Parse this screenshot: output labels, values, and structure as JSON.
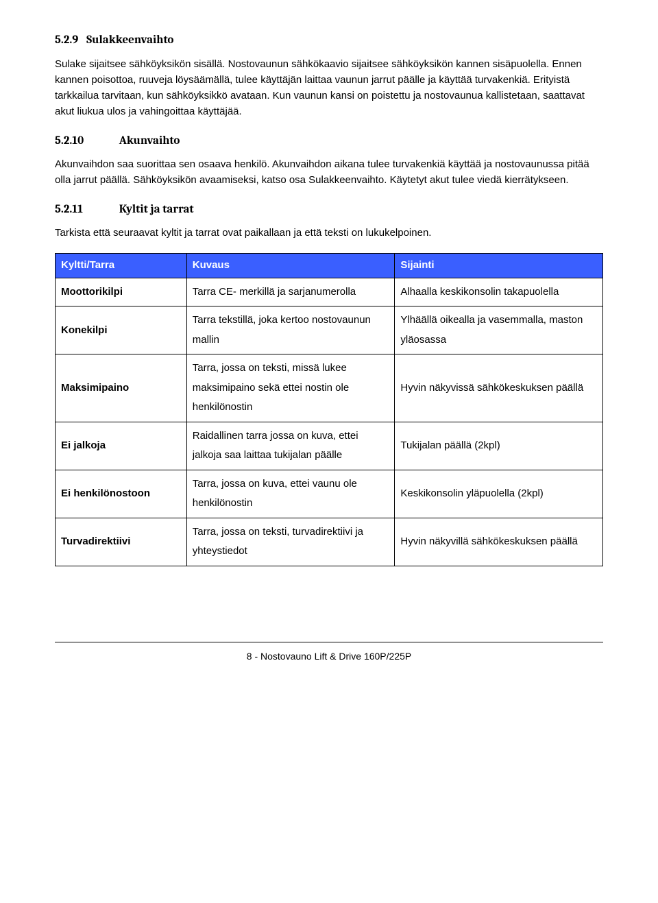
{
  "sections": {
    "s529": {
      "num": "5.2.9",
      "title": "Sulakkeenvaihto",
      "body": "Sulake sijaitsee sähköyksikön sisällä. Nostovaunun sähkökaavio sijaitsee sähköyksikön kannen sisäpuolella. Ennen kannen poisottoa, ruuveja löysäämällä, tulee käyttäjän laittaa vaunun jarrut päälle ja käyttää turvakenkiä. Erityistä tarkkailua tarvitaan, kun sähköyksikkö avataan. Kun vaunun kansi on poistettu ja nostovaunua kallistetaan, saattavat akut liukua ulos ja vahingoittaa käyttäjää."
    },
    "s5210": {
      "num": "5.2.10",
      "title": "Akunvaihto",
      "body": "Akunvaihdon saa suorittaa sen osaava henkilö. Akunvaihdon aikana tulee turvakenkiä käyttää ja nostovaunussa pitää olla jarrut päällä. Sähköyksikön avaamiseksi, katso osa Sulakkeenvaihto. Käytetyt akut tulee viedä kierrätykseen."
    },
    "s5211": {
      "num": "5.2.11",
      "title": "Kyltit ja tarrat",
      "body": "Tarkista että seuraavat kyltit ja tarrat ovat paikallaan ja että teksti on lukukelpoinen."
    }
  },
  "table": {
    "header_bg": "#3a5fff",
    "header_fg": "#ffffff",
    "columns": [
      "Kyltti/Tarra",
      "Kuvaus",
      "Sijainti"
    ],
    "rows": [
      {
        "label": "Moottorikilpi",
        "desc": "Tarra CE- merkillä ja sarjanumerolla",
        "loc": "Alhaalla keskikonsolin takapuolella"
      },
      {
        "label": "Konekilpi",
        "desc": "Tarra tekstillä, joka kertoo nostovaunun mallin",
        "loc": "Ylhäällä oikealla ja vasemmalla, maston yläosassa"
      },
      {
        "label": "Maksimipaino",
        "desc": "Tarra, jossa on teksti, missä lukee maksimipaino sekä ettei nostin ole henkilönostin",
        "loc": "Hyvin näkyvissä sähkökeskuksen päällä"
      },
      {
        "label": "Ei jalkoja",
        "desc": "Raidallinen tarra jossa on kuva, ettei jalkoja saa laittaa tukijalan päälle",
        "loc": "Tukijalan päällä (2kpl)"
      },
      {
        "label": "Ei henkilönostoon",
        "desc": "Tarra, jossa on kuva, ettei vaunu ole henkilönostin",
        "loc": "Keskikonsolin yläpuolella (2kpl)"
      },
      {
        "label": "Turvadirektiivi",
        "desc": "Tarra, jossa on teksti, turvadirektiivi ja yhteystiedot",
        "loc": "Hyvin näkyvillä sähkökeskuksen päällä"
      }
    ]
  },
  "footer": "8 - Nostovauno Lift & Drive 160P/225P"
}
